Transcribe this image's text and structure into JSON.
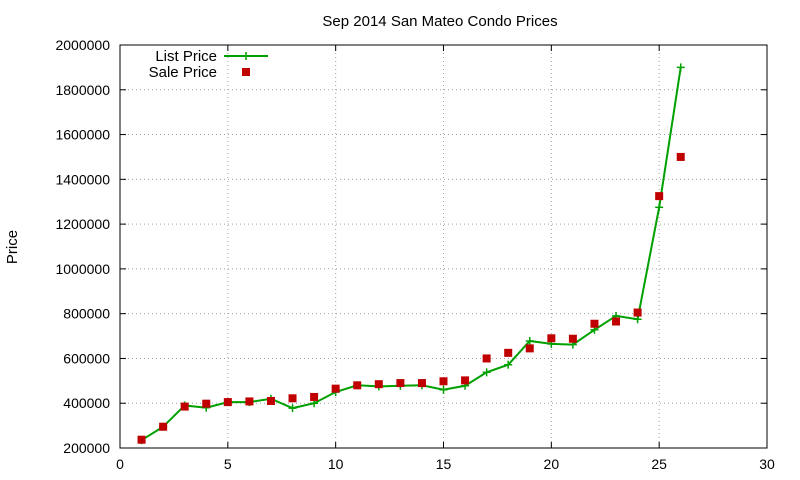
{
  "chart_data": {
    "type": "line",
    "title": "Sep 2014 San Mateo Condo Prices",
    "xlabel": "",
    "ylabel": "Price",
    "xlim": [
      0,
      30
    ],
    "ylim": [
      200000,
      2000000
    ],
    "xticks": [
      0,
      5,
      10,
      15,
      20,
      25,
      30
    ],
    "yticks": [
      200000,
      400000,
      600000,
      800000,
      1000000,
      1200000,
      1400000,
      1600000,
      1800000,
      2000000
    ],
    "grid": true,
    "legend_position": "top-left",
    "series": [
      {
        "name": "List Price",
        "style": "line-points",
        "marker": "plus",
        "color": "#00a000",
        "x": [
          1,
          2,
          3,
          4,
          5,
          6,
          7,
          8,
          9,
          10,
          11,
          12,
          13,
          14,
          15,
          16,
          17,
          18,
          19,
          20,
          21,
          22,
          23,
          24,
          25,
          26
        ],
        "y": [
          235000,
          295000,
          390000,
          380000,
          405000,
          405000,
          420000,
          378000,
          400000,
          450000,
          480000,
          475000,
          478000,
          480000,
          460000,
          478000,
          538000,
          572000,
          678000,
          665000,
          662000,
          728000,
          790000,
          775000,
          1275000,
          1900000
        ]
      },
      {
        "name": "Sale Price",
        "style": "points",
        "marker": "square",
        "color": "#c00000",
        "x": [
          1,
          2,
          3,
          4,
          5,
          6,
          7,
          8,
          9,
          10,
          11,
          12,
          13,
          14,
          15,
          16,
          17,
          18,
          19,
          20,
          21,
          22,
          23,
          24,
          25,
          26
        ],
        "y": [
          237000,
          295000,
          385000,
          398000,
          405000,
          408000,
          410000,
          422000,
          428000,
          465000,
          480000,
          485000,
          490000,
          490000,
          498000,
          502000,
          600000,
          625000,
          645000,
          690000,
          688000,
          755000,
          765000,
          805000,
          1325000,
          1500000
        ]
      }
    ]
  }
}
